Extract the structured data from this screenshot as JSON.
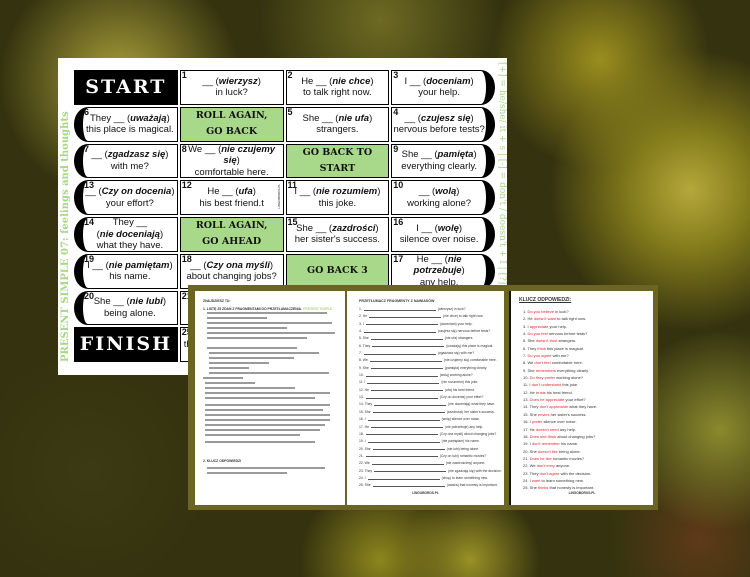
{
  "board": {
    "side_label": "PRESENT SIMPLE 07: feelings and thoughts",
    "rule_label": "[+] = he/she/ it + s  |  [-] = don't / doesn't + I  |  [?] =",
    "colors": {
      "green": "#a8d98a",
      "label_green": "#a6d785",
      "frame": "#6b6424",
      "answer_red": "#e8202a"
    },
    "rows": [
      [
        {
          "type": "black",
          "text": "START"
        },
        {
          "n": "1",
          "a": "__ (",
          "v": "wierzysz",
          "b": ")",
          "l2": "in luck?"
        },
        {
          "n": "2",
          "a": "He __ (",
          "v": "nie chce",
          "b": ")",
          "l2": "to talk right now."
        },
        {
          "n": "3",
          "a": "I __ (",
          "v": "doceniam",
          "b": ")",
          "l2": "your help.",
          "edge": "right"
        }
      ],
      [
        {
          "n": "6",
          "a": "They __ (",
          "v": "uważają",
          "b": ")",
          "l2": "this place is magical.",
          "edge": "left"
        },
        {
          "type": "green",
          "l1": "ROLL AGAIN,",
          "l2": "GO BACK"
        },
        {
          "n": "5",
          "a": "She __ (",
          "v": "nie ufa",
          "b": ")",
          "l2": "strangers."
        },
        {
          "n": "4",
          "a": "__ (",
          "v": "czujesz się",
          "b": ")",
          "l2": "nervous before tests?",
          "edge": "right"
        }
      ],
      [
        {
          "n": "7",
          "a": "__ (",
          "v": "zgadzasz się",
          "b": ")",
          "l2": "with me?",
          "edge": "left"
        },
        {
          "n": "8",
          "a": "We __ (",
          "v": "nie czujemy się",
          "b": ")",
          "l2": "comfortable here."
        },
        {
          "type": "green",
          "l1": "GO BACK TO START"
        },
        {
          "n": "9",
          "a": "She __ (",
          "v": "pamięta",
          "b": ")",
          "l2": "everything clearly.",
          "edge": "right"
        }
      ],
      [
        {
          "n": "13",
          "a": "__ (",
          "v": "Czy on docenia",
          "b": ")",
          "l2": "your effort?",
          "edge": "left"
        },
        {
          "n": "12",
          "a": "He __ (",
          "v": "ufa",
          "b": ")",
          "l2": "his best friend.t",
          "tiny": "LINGOBOROS.PL"
        },
        {
          "n": "11",
          "a": "I __ (",
          "v": "nie rozumiem",
          "b": ")",
          "l2": "this joke."
        },
        {
          "n": "10",
          "a": "__ (",
          "v": "wolą",
          "b": ")",
          "l2": "working alone?",
          "edge": "right"
        }
      ],
      [
        {
          "n": "14",
          "l0": "They __",
          "a": "(",
          "v": "nie doceniają",
          "b": ")",
          "l2": "what they have.",
          "edge": "left"
        },
        {
          "type": "green",
          "l1": "ROLL AGAIN,",
          "l2": "GO AHEAD"
        },
        {
          "n": "15",
          "a": "She __ (",
          "v": "zazdrości",
          "b": ")",
          "l2": "her sister's success."
        },
        {
          "n": "16",
          "a": "I __ (",
          "v": "wolę",
          "b": ")",
          "l2": "silence over noise.",
          "edge": "right"
        }
      ],
      [
        {
          "n": "19",
          "a": "I __ (",
          "v": "nie pamiętam",
          "b": ")",
          "l2": "his name.",
          "edge": "left"
        },
        {
          "n": "18",
          "a": "__ (",
          "v": "Czy ona myśli",
          "b": ")",
          "l2": "about changing jobs?"
        },
        {
          "type": "green",
          "l1": "GO BACK 3"
        },
        {
          "n": "17",
          "a": "He __ (",
          "v": "nie potrzebuje",
          "b": ")",
          "l2": "any help.",
          "edge": "right"
        }
      ],
      [
        {
          "n": "20",
          "a": "She __ (",
          "v": "nie lubi",
          "b": ")",
          "l2": "being alone.",
          "edge": "left"
        },
        {
          "n": "21"
        }
      ],
      [
        {
          "type": "black",
          "text": "FINISH"
        },
        {
          "n": "25",
          "l2": "th"
        }
      ]
    ]
  },
  "worksheet": {
    "intro": {
      "heading": "ZNAJDZIESZ TU:",
      "item1": "1. LISTĘ 25 ZDAŃ Z FRAGMENTAMI DO PRZETŁUMACZENIA.",
      "highlight": "PRESENT SIMPLE",
      "item2": "2. KLUCZ ODPOWIEDZI"
    },
    "exercise": {
      "title": "PRZETŁUMACZ FRAGMENTY Z NAWIASÓW",
      "items": [
        {
          "n": "1.",
          "s": "",
          "hint": "(wierzysz) in luck?"
        },
        {
          "n": "2.",
          "s": "He",
          "hint": "(nie chce) to talk right now."
        },
        {
          "n": "3.",
          "s": "I",
          "hint": "(doceniam) your help."
        },
        {
          "n": "4.",
          "s": "",
          "hint": "(czujesz się) nervous before tests?"
        },
        {
          "n": "5.",
          "s": "She",
          "hint": "(nie ufa) strangers."
        },
        {
          "n": "6.",
          "s": "They",
          "hint": "(uważają) this place is magical."
        },
        {
          "n": "7.",
          "s": "",
          "hint": "(zgadzasz się) with me?"
        },
        {
          "n": "8.",
          "s": "We",
          "hint": "(nie czujemy się) comfortable here."
        },
        {
          "n": "9.",
          "s": "She",
          "hint": "(pamięta) everything clearly."
        },
        {
          "n": "10.",
          "s": "",
          "hint": "(wolą) working alone?"
        },
        {
          "n": "11.",
          "s": "I",
          "hint": "(nie rozumiem) this joke."
        },
        {
          "n": "12.",
          "s": "He",
          "hint": "(ufa) his best friend."
        },
        {
          "n": "13.",
          "s": "",
          "hint": "(Czy on docenia) your effort?"
        },
        {
          "n": "14.",
          "s": "They",
          "hint": "(nie doceniają) what they have."
        },
        {
          "n": "15.",
          "s": "She",
          "hint": "(zazdrości) her sister's success."
        },
        {
          "n": "16.",
          "s": "I",
          "hint": "(wolę) silence over noise."
        },
        {
          "n": "17.",
          "s": "He",
          "hint": "(nie potrzebuje) any help."
        },
        {
          "n": "18.",
          "s": "",
          "hint": "(Czy ona myśli) about changing jobs?"
        },
        {
          "n": "19.",
          "s": "I",
          "hint": "(nie pamiętam) his name."
        },
        {
          "n": "20.",
          "s": "She",
          "hint": "(nie lubi) being alone."
        },
        {
          "n": "21.",
          "s": "",
          "hint": "(Czy on lubi) romantic movies?"
        },
        {
          "n": "22.",
          "s": "We",
          "hint": "(nie zazdrościmy) anyone."
        },
        {
          "n": "23.",
          "s": "They",
          "hint": "(nie zgadzają się) with the decision."
        },
        {
          "n": "24.",
          "s": "I",
          "hint": "(chcę) to learn something new."
        },
        {
          "n": "25.",
          "s": "She",
          "hint": "(uważa) that honesty is important."
        }
      ],
      "footer": "LINGOBOROS.PL"
    },
    "key": {
      "title": "KLUCZ ODPOWIEDZI:",
      "items": [
        {
          "n": "1.",
          "pre": "",
          "red": "Do you believe",
          "post": " in luck?"
        },
        {
          "n": "2.",
          "pre": "He ",
          "red": "doesn't want",
          "post": " to talk right now."
        },
        {
          "n": "3.",
          "pre": "I ",
          "red": "appreciate",
          "post": " your help."
        },
        {
          "n": "4.",
          "pre": "",
          "red": "Do you feel",
          "post": " nervous before tests?"
        },
        {
          "n": "5.",
          "pre": "She ",
          "red": "doesn't trust",
          "post": " strangers."
        },
        {
          "n": "6.",
          "pre": "They ",
          "red": "think",
          "post": " this place is magical."
        },
        {
          "n": "7.",
          "pre": "",
          "red": "Do you agree",
          "post": " with me?"
        },
        {
          "n": "8.",
          "pre": "We ",
          "red": "don't feel",
          "post": " comfortable here."
        },
        {
          "n": "9.",
          "pre": "She ",
          "red": "remembers",
          "post": " everything clearly."
        },
        {
          "n": "10.",
          "pre": "",
          "red": "Do they prefer",
          "post": " working alone?"
        },
        {
          "n": "11.",
          "pre": "I ",
          "red": "don't understand",
          "post": " this joke."
        },
        {
          "n": "12.",
          "pre": "He ",
          "red": "trusts",
          "post": " his best friend."
        },
        {
          "n": "13.",
          "pre": "",
          "red": "Does he appreciate",
          "post": " your effort?"
        },
        {
          "n": "14.",
          "pre": "They ",
          "red": "don't appreciate",
          "post": " what they have."
        },
        {
          "n": "15.",
          "pre": "She ",
          "red": "envies",
          "post": " her sister's success."
        },
        {
          "n": "16.",
          "pre": "I ",
          "red": "prefer",
          "post": " silence over noise."
        },
        {
          "n": "17.",
          "pre": "He ",
          "red": "doesn't need",
          "post": " any help."
        },
        {
          "n": "18.",
          "pre": "",
          "red": "Does she think",
          "post": " about changing jobs?"
        },
        {
          "n": "19.",
          "pre": "I ",
          "red": "don't remember",
          "post": " his name."
        },
        {
          "n": "20.",
          "pre": "She ",
          "red": "doesn't like",
          "post": " being alone."
        },
        {
          "n": "21.",
          "pre": "",
          "red": "Does he like",
          "post": " romantic movies?"
        },
        {
          "n": "22.",
          "pre": "We ",
          "red": "don't envy",
          "post": " anyone."
        },
        {
          "n": "23.",
          "pre": "They ",
          "red": "don't agree",
          "post": " with the decision."
        },
        {
          "n": "24.",
          "pre": "I ",
          "red": "want",
          "post": " to learn something new."
        },
        {
          "n": "25.",
          "pre": "She ",
          "red": "thinks",
          "post": " that honesty is important."
        }
      ],
      "footer": "LINGOBOROS.PL"
    }
  }
}
